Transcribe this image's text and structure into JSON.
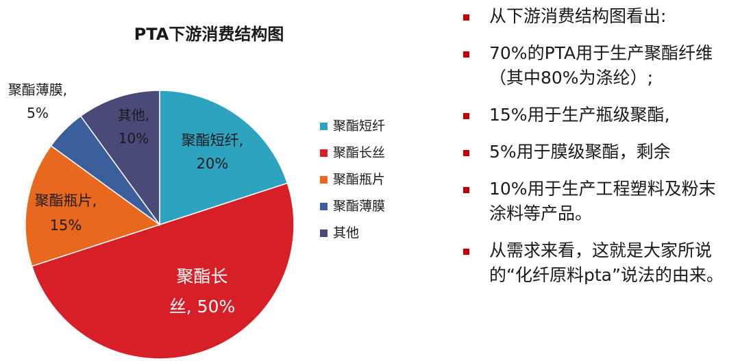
{
  "chart_data": {
    "type": "pie",
    "title": "PTA下游消费结构图",
    "slices": [
      {
        "name": "聚酯短纤",
        "value": 20,
        "color": "#2EA3C0",
        "label_lines": [
          "聚酯短纤,",
          "20%"
        ],
        "label_color": "#1a1a1a"
      },
      {
        "name": "聚酯长丝",
        "value": 50,
        "color": "#D71F27",
        "label_lines": [
          "聚酯长",
          "丝, 50%"
        ],
        "label_color": "#ffffff"
      },
      {
        "name": "聚酯瓶片",
        "value": 15,
        "color": "#E8691E",
        "label_lines": [
          "聚酯瓶片,",
          "15%"
        ],
        "label_color": "#1a1a1a"
      },
      {
        "name": "聚酯薄膜",
        "value": 5,
        "color": "#3A5F9C",
        "label_lines": [
          "聚酯薄膜,",
          "5%"
        ],
        "label_color": "#1a1a1a"
      },
      {
        "name": "其他",
        "value": 10,
        "color": "#4A4A78",
        "label_lines": [
          "其他,",
          "10%"
        ],
        "label_color": "#1a1a1a"
      }
    ],
    "legend": [
      "聚酯短纤",
      "聚酯长丝",
      "聚酯瓶片",
      "聚酯薄膜",
      "其他"
    ],
    "legend_position": "right"
  },
  "bullets": [
    "从下游消费结构图看出:",
    "70%的PTA用于生产聚酯纤维（其中80%为涤纶）;",
    "15%用于生产瓶级聚酯,",
    "5%用于膜级聚酯，剩余",
    "10%用于生产工程塑料及粉末涂料等产品。",
    "从需求来看，这就是大家所说的“化纤原料pta”说法的由来。"
  ],
  "colors": {
    "bullet_marker": "#C00000"
  }
}
